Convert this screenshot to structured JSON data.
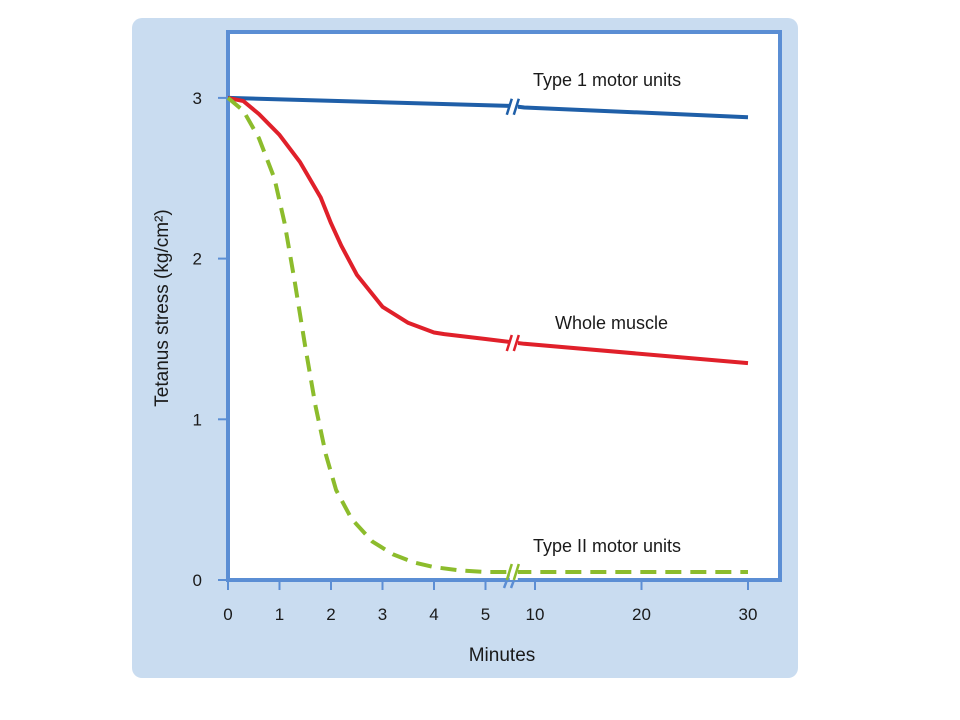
{
  "chart_data": {
    "type": "line",
    "xlabel": "Minutes",
    "ylabel": "Tetanus stress (kg/cm²)",
    "ylim": [
      0,
      3.3
    ],
    "x_ticks": [
      "0",
      "1",
      "2",
      "3",
      "4",
      "5",
      "10",
      "20",
      "30"
    ],
    "y_ticks": [
      "0",
      "1",
      "2",
      "3"
    ],
    "axis_break": "between 5 and 10 minutes",
    "grid": false,
    "colors": {
      "background_panel": "#c9dcf0",
      "plot_area": "#ffffff",
      "frame": "#5b8ed4",
      "type1": "#1f5fa8",
      "whole": "#e0202a",
      "type2": "#8cbc2c"
    },
    "series": [
      {
        "name": "Type 1 motor units",
        "style": "solid",
        "color": "#1f5fa8",
        "x": [
          0,
          5.5,
          8,
          30
        ],
        "y": [
          3.0,
          2.95,
          2.94,
          2.88
        ]
      },
      {
        "name": "Whole muscle",
        "style": "solid",
        "color": "#e0202a",
        "x": [
          0,
          0.3,
          0.6,
          1.0,
          1.4,
          1.8,
          2.0,
          2.2,
          2.5,
          3.0,
          3.5,
          4.0,
          4.2,
          5.0,
          5.5,
          8,
          30
        ],
        "y": [
          3.0,
          2.98,
          2.9,
          2.77,
          2.6,
          2.38,
          2.22,
          2.08,
          1.9,
          1.7,
          1.6,
          1.54,
          1.53,
          1.5,
          1.48,
          1.47,
          1.35
        ]
      },
      {
        "name": "Type II motor units",
        "style": "dashed",
        "color": "#8cbc2c",
        "x": [
          0,
          0.3,
          0.6,
          0.9,
          1.1,
          1.3,
          1.5,
          1.7,
          1.9,
          2.1,
          2.4,
          2.8,
          3.2,
          3.6,
          4.0,
          4.5,
          5.0,
          5.5,
          8,
          30
        ],
        "y": [
          3.0,
          2.92,
          2.75,
          2.5,
          2.22,
          1.85,
          1.45,
          1.08,
          0.78,
          0.56,
          0.38,
          0.24,
          0.16,
          0.11,
          0.08,
          0.06,
          0.05,
          0.05,
          0.05,
          0.05
        ]
      }
    ]
  }
}
